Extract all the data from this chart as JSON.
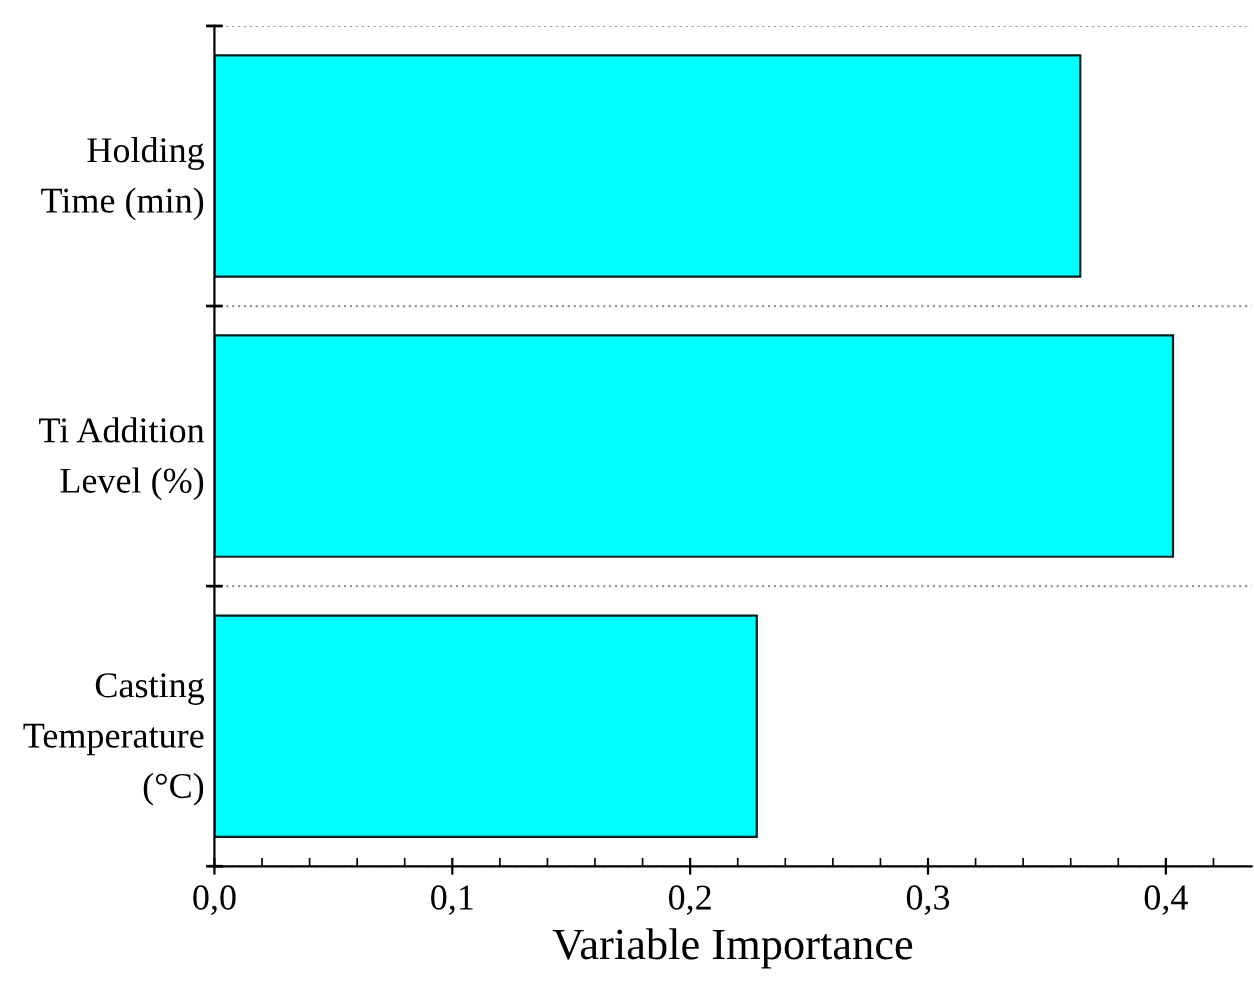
{
  "chart_data": {
    "type": "bar",
    "orientation": "horizontal",
    "xlabel": "Variable Importance",
    "categories": [
      "Holding\nTime (min)",
      "Ti Addition\nLevel (%)",
      "Casting\nTemperature\n(°C)"
    ],
    "values": [
      0.364,
      0.403,
      0.228
    ],
    "color": "#00ffff",
    "xlim": [
      0,
      0.436
    ],
    "xticks": [
      {
        "value": 0,
        "label": "0,0"
      },
      {
        "value": 0.1,
        "label": "0,1"
      },
      {
        "value": 0.2,
        "label": "0,2"
      },
      {
        "value": 0.3,
        "label": "0,3"
      },
      {
        "value": 0.4,
        "label": "0,4"
      }
    ],
    "grid": "y"
  }
}
